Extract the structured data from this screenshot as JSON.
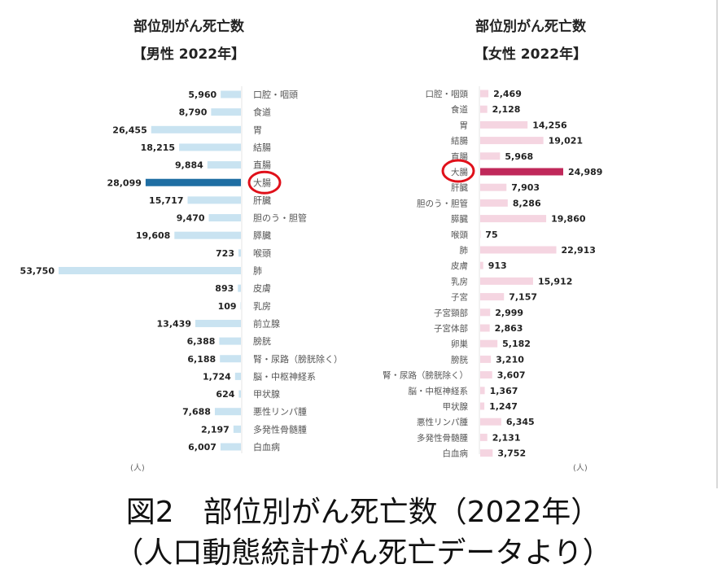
{
  "charts": [
    {
      "title": "部位別がん死亡数",
      "subtitle": "【男性 2022年】",
      "unit": "(人)",
      "highlight": "大腸",
      "colors": {
        "bar": "#c9e3f1",
        "highlight": "#1f6ea3"
      }
    },
    {
      "title": "部位別がん死亡数",
      "subtitle": "【女性 2022年】",
      "unit": "(人)",
      "highlight": "大腸",
      "colors": {
        "bar": "#f5d5e1",
        "highlight": "#c0285a"
      }
    }
  ],
  "caption": {
    "line1": "図2　部位別がん死亡数（2022年）",
    "line2": "（人口動態統計がん死亡データより）"
  },
  "chart_data": [
    {
      "type": "bar",
      "orientation": "horizontal",
      "direction": "right-to-left",
      "categories": [
        "口腔・咽頭",
        "食道",
        "胃",
        "結腸",
        "直腸",
        "大腸",
        "肝臓",
        "胆のう・胆管",
        "膵臓",
        "喉頭",
        "肺",
        "皮膚",
        "乳房",
        "前立腺",
        "膀胱",
        "腎・尿路（膀胱除く）",
        "脳・中枢神経系",
        "甲状腺",
        "悪性リンパ腫",
        "多発性骨髄腫",
        "白血病"
      ],
      "values": [
        5960,
        8790,
        26455,
        18215,
        9884,
        28099,
        15717,
        9470,
        19608,
        723,
        53750,
        893,
        109,
        13439,
        6388,
        6188,
        1724,
        624,
        7688,
        2197,
        6007
      ],
      "value_labels": [
        "5,960",
        "8,790",
        "26,455",
        "18,215",
        "9,884",
        "28,099",
        "15,717",
        "9,470",
        "19,608",
        "723",
        "53,750",
        "893",
        "109",
        "13,439",
        "6,388",
        "6,188",
        "1,724",
        "624",
        "7,688",
        "2,197",
        "6,007"
      ]
    },
    {
      "type": "bar",
      "orientation": "horizontal",
      "direction": "left-to-right",
      "categories": [
        "口腔・咽頭",
        "食道",
        "胃",
        "結腸",
        "直腸",
        "大腸",
        "肝臓",
        "胆のう・胆管",
        "膵臓",
        "喉頭",
        "肺",
        "皮膚",
        "乳房",
        "子宮",
        "子宮頸部",
        "子宮体部",
        "卵巣",
        "膀胱",
        "腎・尿路（膀胱除く）",
        "脳・中枢神経系",
        "甲状腺",
        "悪性リンパ腫",
        "多発性骨髄腫",
        "白血病"
      ],
      "values": [
        2469,
        2128,
        14256,
        19021,
        5968,
        24989,
        7903,
        8286,
        19860,
        75,
        22913,
        913,
        15912,
        7157,
        2999,
        2863,
        5182,
        3210,
        3607,
        1367,
        1247,
        6345,
        2131,
        3752
      ],
      "value_labels": [
        "2,469",
        "2,128",
        "14,256",
        "19,021",
        "5,968",
        "24,989",
        "7,903",
        "8,286",
        "19,860",
        "75",
        "22,913",
        "913",
        "15,912",
        "7,157",
        "2,999",
        "2,863",
        "5,182",
        "3,210",
        "3,607",
        "1,367",
        "1,247",
        "6,345",
        "2,131",
        "3,752"
      ]
    }
  ]
}
